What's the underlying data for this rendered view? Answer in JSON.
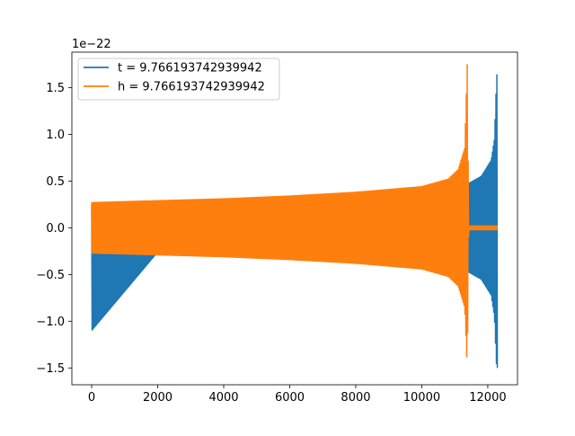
{
  "chart_data": {
    "type": "line",
    "title": "",
    "xlabel": "",
    "ylabel": "",
    "y_scale_label": "1e−22",
    "xlim": [
      -600,
      12900
    ],
    "ylim": [
      -1.68,
      1.88
    ],
    "x_ticks": [
      0,
      2000,
      4000,
      6000,
      8000,
      10000,
      12000
    ],
    "x_tick_labels": [
      "0",
      "2000",
      "4000",
      "6000",
      "8000",
      "10000",
      "12000"
    ],
    "y_ticks": [
      -1.5,
      -1.0,
      -0.5,
      0.0,
      0.5,
      1.0,
      1.5
    ],
    "y_tick_labels": [
      "−1.5",
      "−1.0",
      "−0.5",
      "0.0",
      "0.5",
      "1.0",
      "1.5"
    ],
    "grid": false,
    "legend_position": "top-left",
    "series": [
      {
        "name": "t = 9.766193742939942",
        "color": "#1f77b4",
        "envelope_x": [
          0,
          2000,
          4000,
          6000,
          8000,
          10000,
          11000,
          11400,
          11800,
          12100,
          12200,
          12260,
          12300
        ],
        "envelope_upper": [
          0.23,
          0.26,
          0.28,
          0.31,
          0.34,
          0.39,
          0.44,
          0.47,
          0.55,
          0.72,
          0.95,
          1.55,
          1.78
        ],
        "envelope_lower": [
          -1.1,
          -0.26,
          -0.28,
          -0.31,
          -0.34,
          -0.39,
          -0.44,
          -0.47,
          -0.55,
          -0.72,
          -0.95,
          -1.45,
          -1.52
        ]
      },
      {
        "name": "h = 9.766193742939942",
        "color": "#ff7f0e",
        "envelope_x": [
          0,
          2000,
          4000,
          6000,
          8000,
          10000,
          10800,
          11100,
          11300,
          11380,
          11420,
          11450,
          12300
        ],
        "envelope_upper": [
          0.27,
          0.29,
          0.31,
          0.34,
          0.38,
          0.44,
          0.52,
          0.62,
          0.85,
          1.78,
          0.02,
          0.02,
          0.02
        ],
        "envelope_lower": [
          -0.27,
          -0.29,
          -0.31,
          -0.34,
          -0.38,
          -0.44,
          -0.52,
          -0.62,
          -0.85,
          -1.52,
          -0.02,
          -0.02,
          -0.02
        ]
      }
    ]
  }
}
